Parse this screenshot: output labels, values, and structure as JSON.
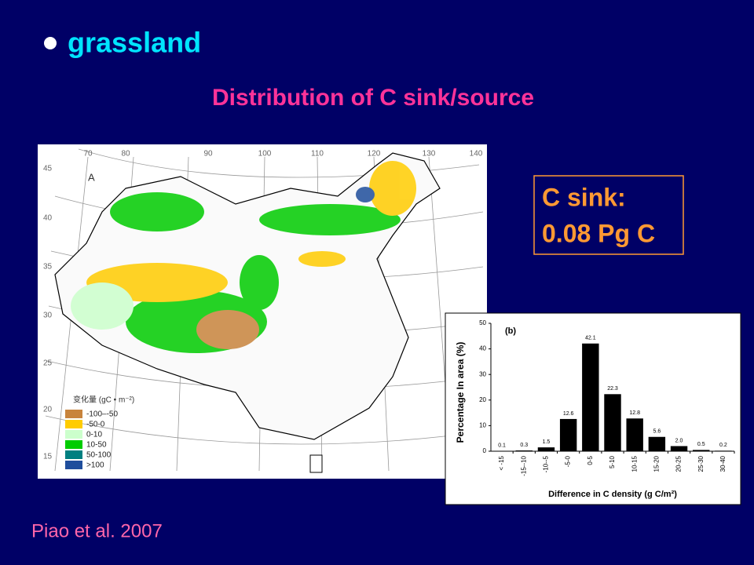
{
  "bullet": "grassland",
  "subtitle": "Distribution of C sink/source",
  "callout": [
    "C sink:",
    "0.08 Pg C"
  ],
  "citation": "Piao et al. 2007",
  "map": {
    "panel": "A",
    "lon_labels": [
      70,
      80,
      90,
      100,
      110,
      120,
      130,
      140
    ],
    "lat_labels": [
      45,
      40,
      35,
      30,
      25,
      20,
      15
    ],
    "legend_title": "变化量 (gC • m⁻²)",
    "legend": [
      {
        "name": "-100–-50",
        "color": "#c8843c"
      },
      {
        "name": "-50-0",
        "color": "#ffcc00"
      },
      {
        "name": "0-10",
        "color": "#ccffcc"
      },
      {
        "name": "10-50",
        "color": "#00cc00"
      },
      {
        "name": "50-100",
        "color": "#008080"
      },
      {
        "name": ">100",
        "color": "#1f4e9c"
      }
    ]
  },
  "chart_data": {
    "type": "bar",
    "panel_label": "(b)",
    "categories": [
      "< -15",
      "-15--10",
      "-10--5",
      "-5-0",
      "0-5",
      "5-10",
      "10-15",
      "15-20",
      "20-25",
      "25-30",
      "30-40"
    ],
    "values": [
      0.1,
      0.3,
      1.5,
      12.6,
      42.1,
      22.3,
      12.8,
      5.6,
      2.0,
      0.5,
      0.2
    ],
    "value_labels": [
      "0.1",
      "0.3",
      "1.5",
      "12.6",
      "42.1",
      "22.3",
      "12.8",
      "5.6",
      "2.0",
      "0.5",
      "0.2"
    ],
    "color": "#000000",
    "ylim": [
      0,
      50
    ],
    "yticks": [
      0,
      10,
      20,
      30,
      40,
      50
    ],
    "y_label": "Percentage In area (%)",
    "x_label": "Difference in C density (g C/m²)"
  }
}
